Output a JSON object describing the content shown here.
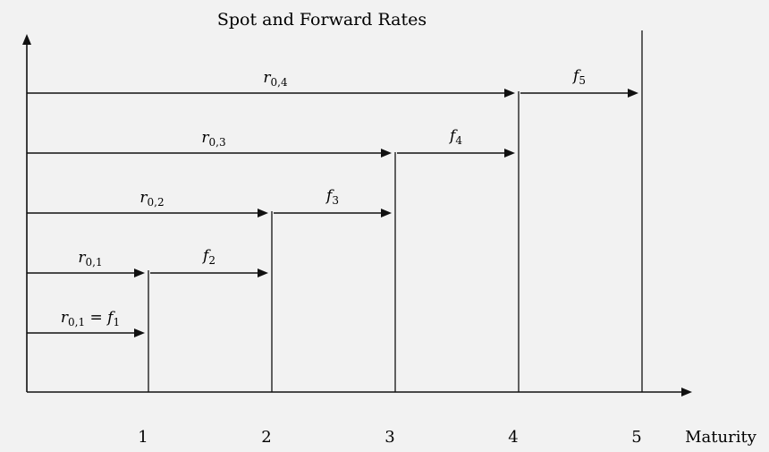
{
  "title": "Spot and Forward Rates",
  "x_axis_label": "Maturity",
  "x_ticks": [
    "1",
    "2",
    "3",
    "4",
    "5"
  ],
  "rows": [
    {
      "spot": {
        "base": "r",
        "sub": "0,1",
        "suffix": " = f",
        "suffix_sub": "1",
        "to": 1
      },
      "forward": null
    },
    {
      "spot": {
        "base": "r",
        "sub": "0,1",
        "to": 1
      },
      "forward": {
        "base": "f",
        "sub": "2",
        "from": 1,
        "to": 2
      }
    },
    {
      "spot": {
        "base": "r",
        "sub": "0,2",
        "to": 2
      },
      "forward": {
        "base": "f",
        "sub": "3",
        "from": 2,
        "to": 3
      }
    },
    {
      "spot": {
        "base": "r",
        "sub": "0,3",
        "to": 3
      },
      "forward": {
        "base": "f",
        "sub": "4",
        "from": 3,
        "to": 4
      }
    },
    {
      "spot": {
        "base": "r",
        "sub": "0,4",
        "to": 4
      },
      "forward": {
        "base": "f",
        "sub": "5",
        "from": 4,
        "to": 5
      }
    }
  ]
}
